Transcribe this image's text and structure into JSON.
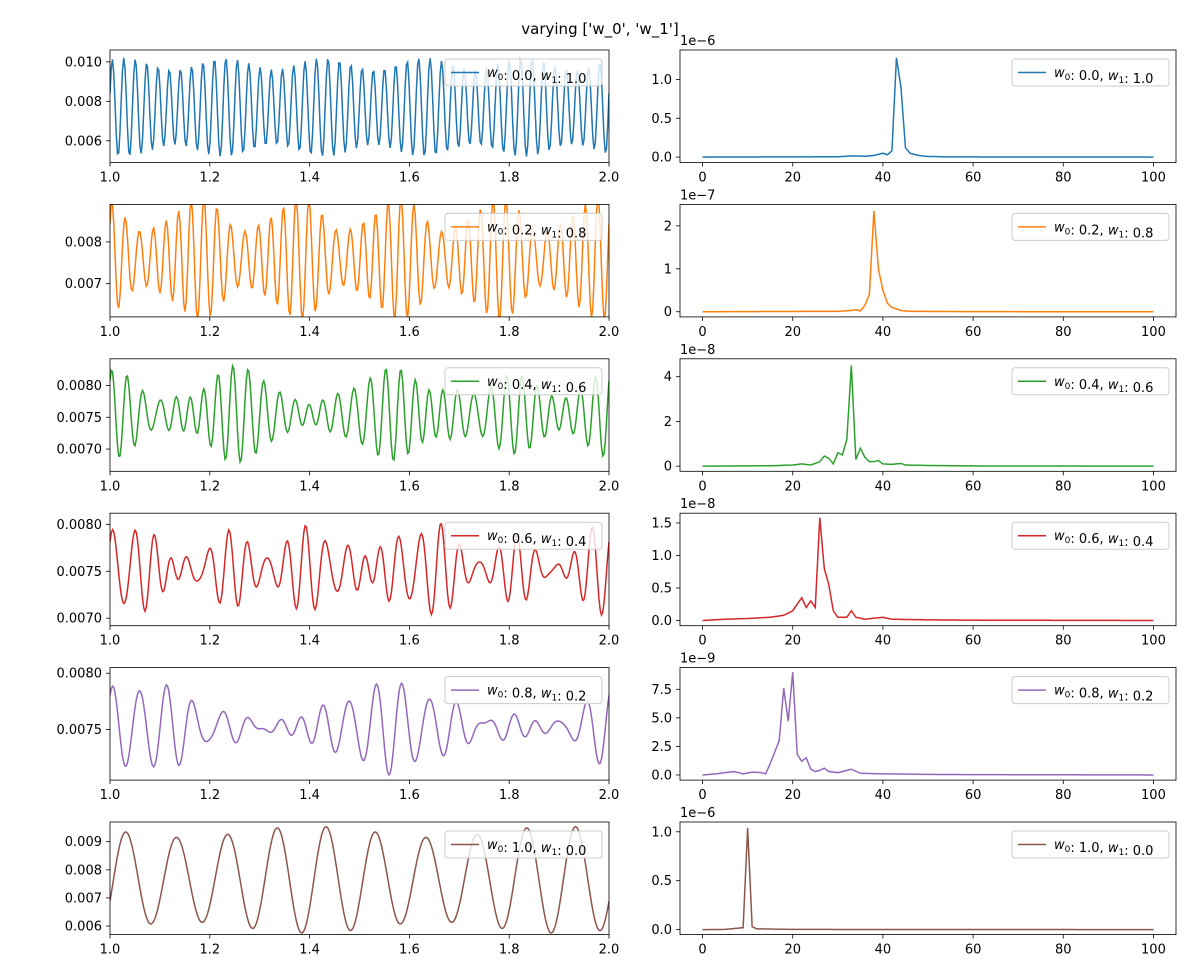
{
  "figure": {
    "title": "varying ['w_0', 'w_1']"
  },
  "chart_data": [
    {
      "type": "line",
      "row": 0,
      "col": 0,
      "color": "#1f77b4",
      "legend": {
        "w0": "0.0",
        "w1": "1.0"
      },
      "xlim": [
        1.0,
        2.0
      ],
      "ylim": [
        0.0049,
        0.0106
      ],
      "x_ticks": [
        1.0,
        1.2,
        1.4,
        1.6,
        1.8,
        2.0
      ],
      "x_tick_labels": [
        "1.0",
        "1.2",
        "1.4",
        "1.6",
        "1.8",
        "2.0"
      ],
      "y_ticks": [
        0.006,
        0.008,
        0.01
      ],
      "y_tick_labels": [
        "0.006",
        "0.008",
        "0.010"
      ],
      "offset_text": "",
      "signal": {
        "base": 0.0077,
        "components": [
          [
            44,
            0.0022,
            0.2
          ],
          [
            39,
            0.0003,
            1.1
          ]
        ],
        "n": 400
      }
    },
    {
      "type": "line",
      "row": 0,
      "col": 1,
      "color": "#1f77b4",
      "legend": {
        "w0": "0.0",
        "w1": "1.0"
      },
      "xlim": [
        -5,
        105
      ],
      "ylim": [
        -0.07,
        1.38
      ],
      "x_ticks": [
        0,
        20,
        40,
        60,
        80,
        100
      ],
      "x_tick_labels": [
        "0",
        "20",
        "40",
        "60",
        "80",
        "100"
      ],
      "y_ticks": [
        0,
        0.5,
        1.0
      ],
      "y_tick_labels": [
        "0.0",
        "0.5",
        "1.0"
      ],
      "offset_text": "1e−6",
      "spectrum": [
        [
          0,
          0
        ],
        [
          30,
          0.004
        ],
        [
          33,
          0.015
        ],
        [
          36,
          0.01
        ],
        [
          38,
          0.02
        ],
        [
          40,
          0.05
        ],
        [
          41,
          0.03
        ],
        [
          42,
          0.08
        ],
        [
          43,
          1.28
        ],
        [
          44,
          0.9
        ],
        [
          45,
          0.12
        ],
        [
          46,
          0.05
        ],
        [
          48,
          0.02
        ],
        [
          50,
          0.008
        ],
        [
          55,
          0.002
        ],
        [
          100,
          0
        ]
      ]
    },
    {
      "type": "line",
      "row": 1,
      "col": 0,
      "color": "#ff7f0e",
      "legend": {
        "w0": "0.2",
        "w1": "0.8"
      },
      "xlim": [
        1.0,
        2.0
      ],
      "ylim": [
        0.0062,
        0.0089
      ],
      "x_ticks": [
        1.0,
        1.2,
        1.4,
        1.6,
        1.8,
        2.0
      ],
      "x_tick_labels": [
        "1.0",
        "1.2",
        "1.4",
        "1.6",
        "1.8",
        "2.0"
      ],
      "y_ticks": [
        0.007,
        0.008
      ],
      "y_tick_labels": [
        "0.007",
        "0.008"
      ],
      "offset_text": "",
      "signal": {
        "base": 0.0076,
        "components": [
          [
            38,
            0.001,
            0.3
          ],
          [
            43,
            0.0004,
            1.5
          ],
          [
            33,
            0.0002,
            0.8
          ]
        ],
        "n": 400
      }
    },
    {
      "type": "line",
      "row": 1,
      "col": 1,
      "color": "#ff7f0e",
      "legend": {
        "w0": "0.2",
        "w1": "0.8"
      },
      "xlim": [
        -5,
        105
      ],
      "ylim": [
        -0.12,
        2.5
      ],
      "x_ticks": [
        0,
        20,
        40,
        60,
        80,
        100
      ],
      "x_tick_labels": [
        "0",
        "20",
        "40",
        "60",
        "80",
        "100"
      ],
      "y_ticks": [
        0,
        1,
        2
      ],
      "y_tick_labels": [
        "0",
        "1",
        "2"
      ],
      "offset_text": "1e−7",
      "spectrum": [
        [
          0,
          0
        ],
        [
          30,
          0.01
        ],
        [
          33,
          0.03
        ],
        [
          34,
          0.05
        ],
        [
          35,
          0.02
        ],
        [
          36,
          0.15
        ],
        [
          37,
          0.4
        ],
        [
          38,
          2.35
        ],
        [
          39,
          1.0
        ],
        [
          40,
          0.5
        ],
        [
          41,
          0.2
        ],
        [
          42,
          0.1
        ],
        [
          44,
          0.03
        ],
        [
          46,
          0.01
        ],
        [
          60,
          0.002
        ],
        [
          100,
          0
        ]
      ]
    },
    {
      "type": "line",
      "row": 2,
      "col": 0,
      "color": "#2ca02c",
      "legend": {
        "w0": "0.4",
        "w1": "0.6"
      },
      "xlim": [
        1.0,
        2.0
      ],
      "ylim": [
        0.00665,
        0.00842
      ],
      "x_ticks": [
        1.0,
        1.2,
        1.4,
        1.6,
        1.8,
        2.0
      ],
      "x_tick_labels": [
        "1.0",
        "1.2",
        "1.4",
        "1.6",
        "1.8",
        "2.0"
      ],
      "y_ticks": [
        0.007,
        0.0075,
        0.008
      ],
      "y_tick_labels": [
        "0.0070",
        "0.0075",
        "0.0080"
      ],
      "offset_text": "",
      "signal": {
        "base": 0.00755,
        "components": [
          [
            33,
            0.0004,
            0.5
          ],
          [
            29,
            0.0002,
            1.2
          ],
          [
            36,
            0.00015,
            2.0
          ],
          [
            38,
            0.0001,
            0.1
          ]
        ],
        "n": 400
      }
    },
    {
      "type": "line",
      "row": 2,
      "col": 1,
      "color": "#2ca02c",
      "legend": {
        "w0": "0.4",
        "w1": "0.6"
      },
      "xlim": [
        -5,
        105
      ],
      "ylim": [
        -0.23,
        4.8
      ],
      "x_ticks": [
        0,
        20,
        40,
        60,
        80,
        100
      ],
      "x_tick_labels": [
        "0",
        "20",
        "40",
        "60",
        "80",
        "100"
      ],
      "y_ticks": [
        0,
        2,
        4
      ],
      "y_tick_labels": [
        "0",
        "2",
        "4"
      ],
      "offset_text": "1e−8",
      "spectrum": [
        [
          0,
          0
        ],
        [
          15,
          0.02
        ],
        [
          20,
          0.05
        ],
        [
          22,
          0.1
        ],
        [
          24,
          0.05
        ],
        [
          26,
          0.2
        ],
        [
          27,
          0.45
        ],
        [
          28,
          0.35
        ],
        [
          29,
          0.1
        ],
        [
          30,
          0.6
        ],
        [
          31,
          0.5
        ],
        [
          32,
          1.2
        ],
        [
          33,
          4.5
        ],
        [
          34,
          0.3
        ],
        [
          35,
          0.8
        ],
        [
          36,
          0.4
        ],
        [
          37,
          0.2
        ],
        [
          38,
          0.2
        ],
        [
          39,
          0.25
        ],
        [
          40,
          0.1
        ],
        [
          42,
          0.08
        ],
        [
          44,
          0.12
        ],
        [
          45,
          0.05
        ],
        [
          50,
          0.03
        ],
        [
          60,
          0.01
        ],
        [
          100,
          0
        ]
      ]
    },
    {
      "type": "line",
      "row": 3,
      "col": 0,
      "color": "#d62728",
      "legend": {
        "w0": "0.6",
        "w1": "0.4"
      },
      "xlim": [
        1.0,
        2.0
      ],
      "ylim": [
        0.00692,
        0.00812
      ],
      "x_ticks": [
        1.0,
        1.2,
        1.4,
        1.6,
        1.8,
        2.0
      ],
      "x_tick_labels": [
        "1.0",
        "1.2",
        "1.4",
        "1.6",
        "1.8",
        "2.0"
      ],
      "y_ticks": [
        0.007,
        0.0075,
        0.008
      ],
      "y_tick_labels": [
        "0.0070",
        "0.0075",
        "0.0080"
      ],
      "offset_text": "",
      "signal": {
        "base": 0.00752,
        "components": [
          [
            26,
            0.00025,
            0.3
          ],
          [
            21,
            0.00012,
            1.0
          ],
          [
            33,
            0.0001,
            2.2
          ],
          [
            23,
            0.0001,
            0.4
          ]
        ],
        "n": 400
      }
    },
    {
      "type": "line",
      "row": 3,
      "col": 1,
      "color": "#d62728",
      "legend": {
        "w0": "0.6",
        "w1": "0.4"
      },
      "xlim": [
        -5,
        105
      ],
      "ylim": [
        -0.08,
        1.65
      ],
      "x_ticks": [
        0,
        20,
        40,
        60,
        80,
        100
      ],
      "x_tick_labels": [
        "0",
        "20",
        "40",
        "60",
        "80",
        "100"
      ],
      "y_ticks": [
        0,
        0.5,
        1.0,
        1.5
      ],
      "y_tick_labels": [
        "0.0",
        "0.5",
        "1.0",
        "1.5"
      ],
      "offset_text": "1e−8",
      "spectrum": [
        [
          0,
          0
        ],
        [
          5,
          0.02
        ],
        [
          10,
          0.03
        ],
        [
          15,
          0.05
        ],
        [
          18,
          0.08
        ],
        [
          20,
          0.15
        ],
        [
          21,
          0.25
        ],
        [
          22,
          0.35
        ],
        [
          23,
          0.2
        ],
        [
          24,
          0.3
        ],
        [
          25,
          0.2
        ],
        [
          26,
          1.58
        ],
        [
          27,
          0.8
        ],
        [
          28,
          0.55
        ],
        [
          29,
          0.15
        ],
        [
          30,
          0.05
        ],
        [
          31,
          0.05
        ],
        [
          32,
          0.05
        ],
        [
          33,
          0.15
        ],
        [
          34,
          0.05
        ],
        [
          36,
          0.02
        ],
        [
          40,
          0.05
        ],
        [
          42,
          0.02
        ],
        [
          50,
          0.01
        ],
        [
          60,
          0.005
        ],
        [
          100,
          0
        ]
      ]
    },
    {
      "type": "line",
      "row": 4,
      "col": 0,
      "color": "#9467bd",
      "legend": {
        "w0": "0.8",
        "w1": "0.2"
      },
      "xlim": [
        1.0,
        2.0
      ],
      "ylim": [
        0.00705,
        0.00805
      ],
      "x_ticks": [
        1.0,
        1.2,
        1.4,
        1.6,
        1.8,
        2.0
      ],
      "x_tick_labels": [
        "1.0",
        "1.2",
        "1.4",
        "1.6",
        "1.8",
        "2.0"
      ],
      "y_ticks": [
        0.0075,
        0.008
      ],
      "y_tick_labels": [
        "0.0075",
        "0.0080"
      ],
      "offset_text": "",
      "signal": {
        "base": 0.00752,
        "components": [
          [
            19,
            0.00018,
            0.6
          ],
          [
            17,
            0.00012,
            1.7
          ],
          [
            21,
            8e-05,
            0.2
          ],
          [
            26,
            5e-05,
            1.3
          ]
        ],
        "n": 400
      }
    },
    {
      "type": "line",
      "row": 4,
      "col": 1,
      "color": "#9467bd",
      "legend": {
        "w0": "0.8",
        "w1": "0.2"
      },
      "xlim": [
        -5,
        105
      ],
      "ylim": [
        -0.45,
        9.4
      ],
      "x_ticks": [
        0,
        20,
        40,
        60,
        80,
        100
      ],
      "x_tick_labels": [
        "0",
        "20",
        "40",
        "60",
        "80",
        "100"
      ],
      "y_ticks": [
        0,
        2.5,
        5.0,
        7.5
      ],
      "y_tick_labels": [
        "0.0",
        "2.5",
        "5.0",
        "7.5"
      ],
      "offset_text": "1e−9",
      "spectrum": [
        [
          0,
          0
        ],
        [
          3,
          0.1
        ],
        [
          5,
          0.2
        ],
        [
          7,
          0.3
        ],
        [
          9,
          0.1
        ],
        [
          11,
          0.25
        ],
        [
          13,
          0.2
        ],
        [
          14,
          0.1
        ],
        [
          15,
          1.0
        ],
        [
          16,
          2.0
        ],
        [
          17,
          3.0
        ],
        [
          18,
          7.6
        ],
        [
          19,
          4.7
        ],
        [
          20,
          9.0
        ],
        [
          21,
          1.8
        ],
        [
          22,
          1.2
        ],
        [
          23,
          1.5
        ],
        [
          24,
          0.5
        ],
        [
          25,
          0.3
        ],
        [
          26,
          0.4
        ],
        [
          27,
          0.6
        ],
        [
          28,
          0.3
        ],
        [
          30,
          0.2
        ],
        [
          33,
          0.5
        ],
        [
          35,
          0.15
        ],
        [
          40,
          0.1
        ],
        [
          50,
          0.05
        ],
        [
          60,
          0.03
        ],
        [
          100,
          0
        ]
      ]
    },
    {
      "type": "line",
      "row": 5,
      "col": 0,
      "color": "#8c564b",
      "legend": {
        "w0": "1.0",
        "w1": "0.0"
      },
      "xlim": [
        1.0,
        2.0
      ],
      "ylim": [
        0.0057,
        0.0097
      ],
      "x_ticks": [
        1.0,
        1.2,
        1.4,
        1.6,
        1.8,
        2.0
      ],
      "x_tick_labels": [
        "1.0",
        "1.2",
        "1.4",
        "1.6",
        "1.8",
        "2.0"
      ],
      "y_ticks": [
        0.006,
        0.007,
        0.008,
        0.009
      ],
      "y_tick_labels": [
        "0.006",
        "0.007",
        "0.008",
        "0.009"
      ],
      "offset_text": "",
      "signal": {
        "base": 0.00765,
        "components": [
          [
            10,
            0.0017,
            -0.55
          ],
          [
            12,
            0.0002,
            0.7
          ]
        ],
        "n": 400
      }
    },
    {
      "type": "line",
      "row": 5,
      "col": 1,
      "color": "#8c564b",
      "legend": {
        "w0": "1.0",
        "w1": "0.0"
      },
      "xlim": [
        -5,
        105
      ],
      "ylim": [
        -0.05,
        1.1
      ],
      "x_ticks": [
        0,
        20,
        40,
        60,
        80,
        100
      ],
      "x_tick_labels": [
        "0",
        "20",
        "40",
        "60",
        "80",
        "100"
      ],
      "y_ticks": [
        0,
        0.5,
        1.0
      ],
      "y_tick_labels": [
        "0.0",
        "0.5",
        "1.0"
      ],
      "offset_text": "1e−6",
      "spectrum": [
        [
          0,
          0
        ],
        [
          5,
          0.002
        ],
        [
          9,
          0.02
        ],
        [
          10,
          1.04
        ],
        [
          11,
          0.03
        ],
        [
          12,
          0.008
        ],
        [
          20,
          0.002
        ],
        [
          100,
          0
        ]
      ]
    }
  ]
}
